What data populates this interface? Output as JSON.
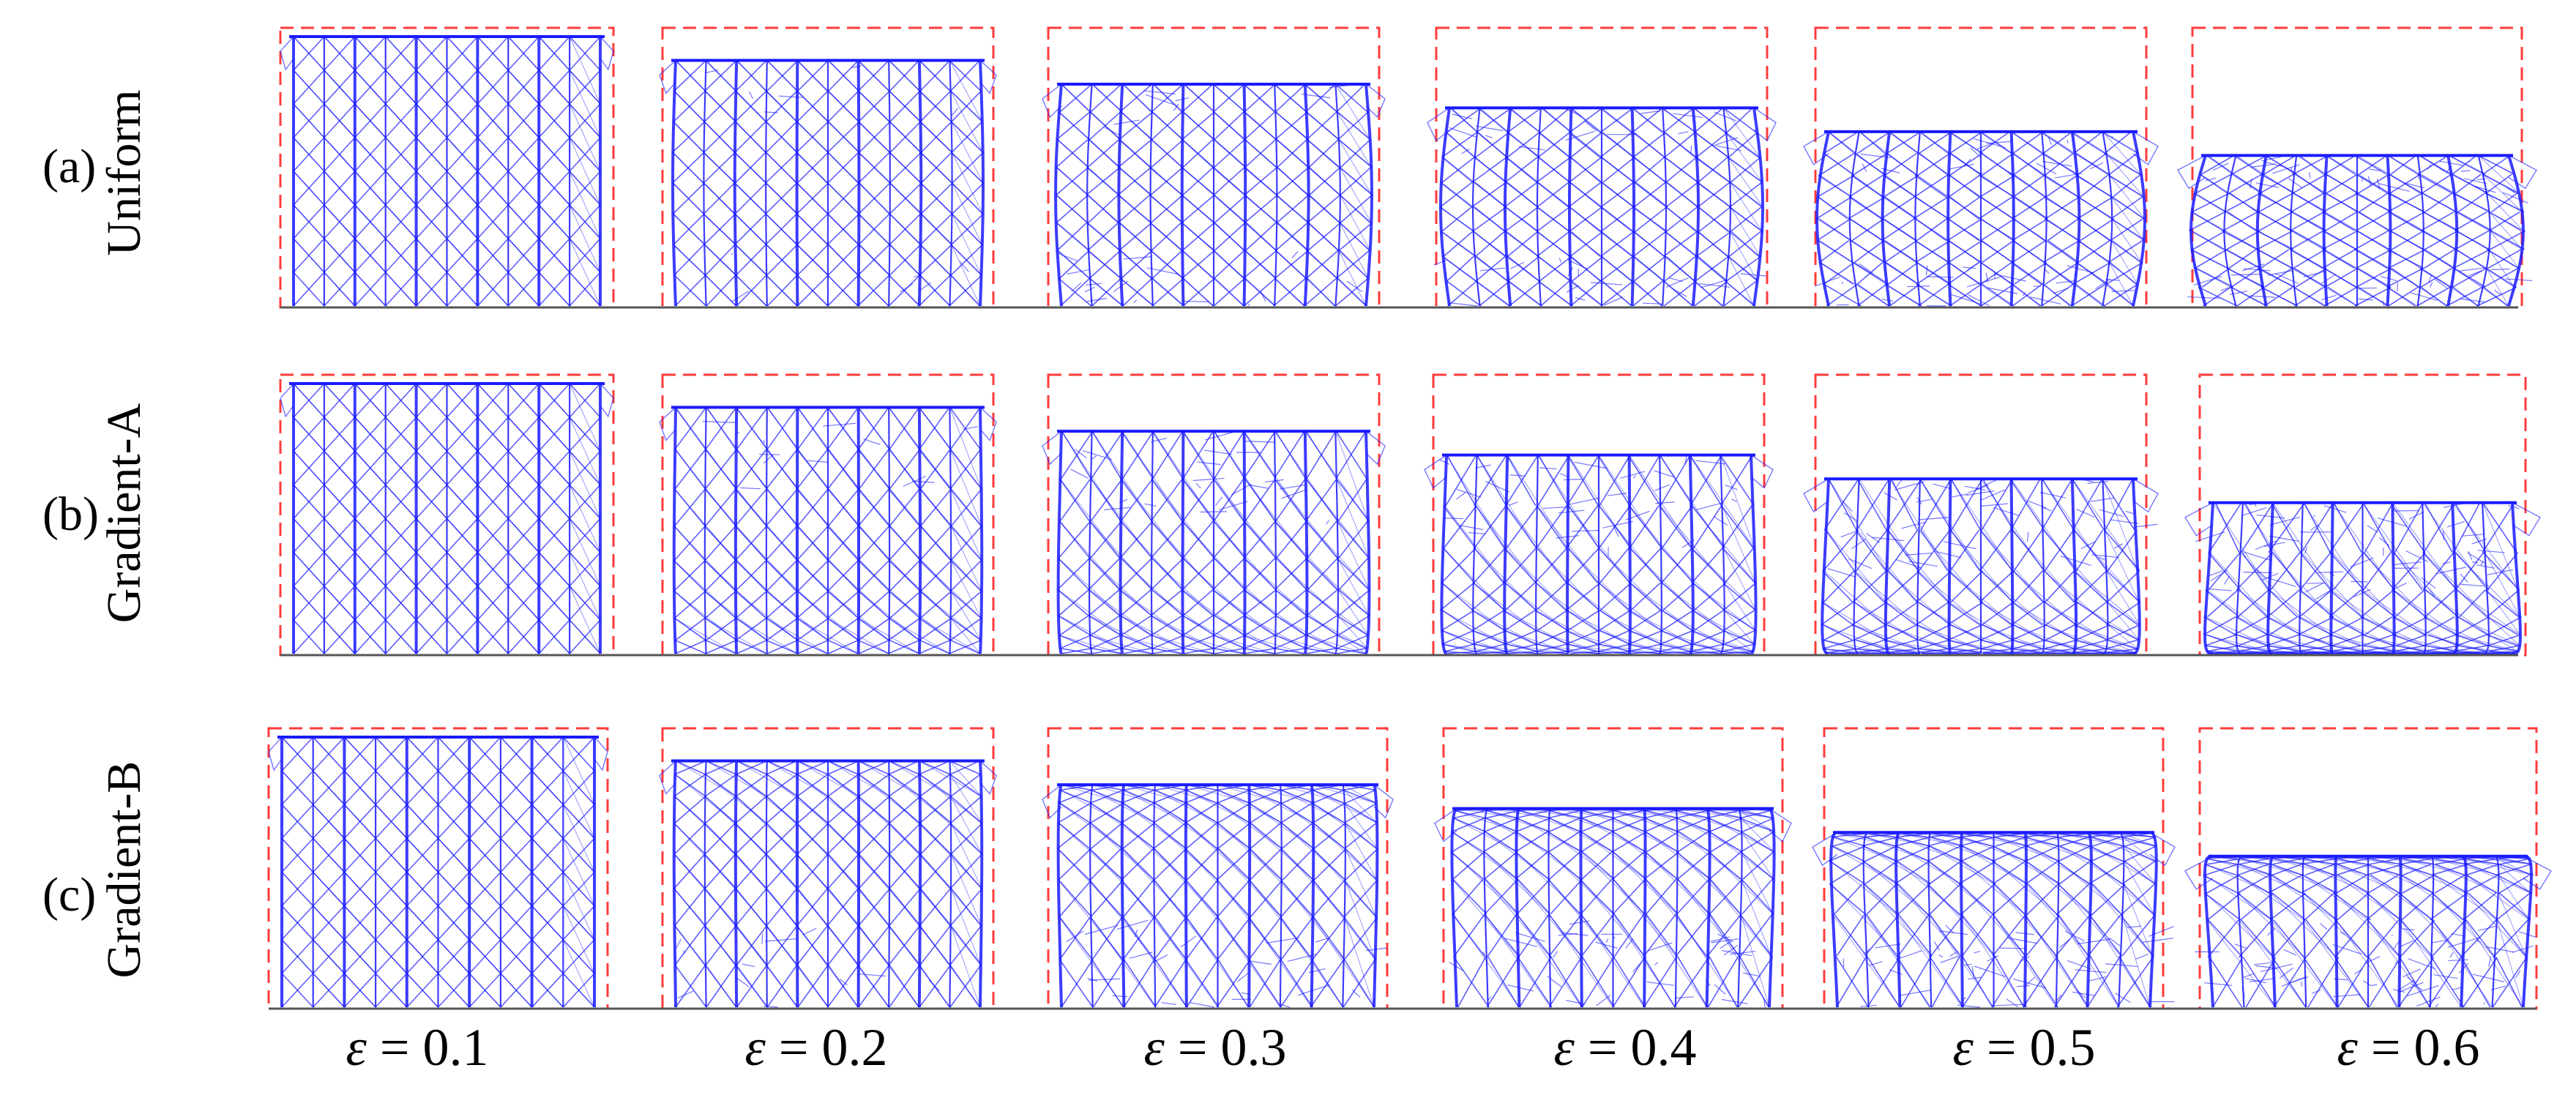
{
  "rows": [
    {
      "id": "a",
      "label": "(a)",
      "type_label": "Uniform",
      "densify": "uniform"
    },
    {
      "id": "b",
      "label": "(b)",
      "type_label": "Gradient-A",
      "densify": "top"
    },
    {
      "id": "c",
      "label": "(c)",
      "type_label": "Gradient-B",
      "densify": "bottom"
    }
  ],
  "columns": [
    {
      "symbol": "ε",
      "eq": " = 0.1",
      "strain": 0.1
    },
    {
      "symbol": "ε",
      "eq": " = 0.2",
      "strain": 0.2
    },
    {
      "symbol": "ε",
      "eq": " = 0.3",
      "strain": 0.3
    },
    {
      "symbol": "ε",
      "eq": " = 0.4",
      "strain": 0.4
    },
    {
      "symbol": "ε",
      "eq": " = 0.5",
      "strain": 0.5
    },
    {
      "symbol": "ε",
      "eq": " = 0.6",
      "strain": 0.6
    }
  ],
  "colors": {
    "lattice": "#1a1aff",
    "box": "#ff3b3b",
    "ground": "#555555"
  }
}
